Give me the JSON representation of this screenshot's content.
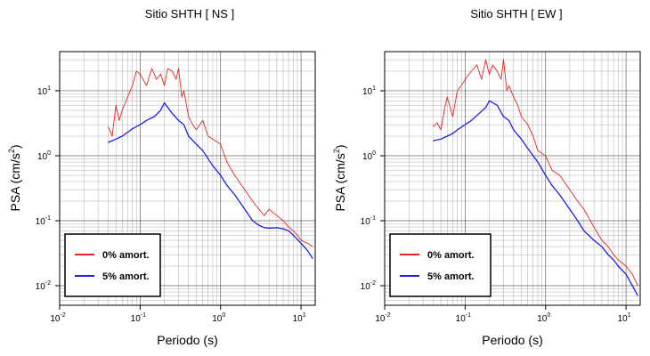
{
  "chart_data": [
    {
      "type": "line",
      "title": "Sitio SHTH [ NS ]",
      "xlabel": "Periodo (s)",
      "ylabel": "PSA (cm/s²)",
      "x_scale": "log",
      "y_scale": "log",
      "xlim": [
        0.01,
        15
      ],
      "ylim": [
        0.005,
        40
      ],
      "grid": true,
      "legend_position": "bottom-left",
      "x_ticks": [
        {
          "value": 0.01,
          "base": "10",
          "exp": "-2"
        },
        {
          "value": 0.1,
          "base": "10",
          "exp": "-1"
        },
        {
          "value": 1,
          "base": "10",
          "exp": "0"
        },
        {
          "value": 10,
          "base": "10",
          "exp": "1"
        }
      ],
      "y_ticks": [
        {
          "value": 0.01,
          "base": "10",
          "exp": "-2"
        },
        {
          "value": 0.1,
          "base": "10",
          "exp": "-1"
        },
        {
          "value": 1,
          "base": "10",
          "exp": "0"
        },
        {
          "value": 10,
          "base": "10",
          "exp": "1"
        }
      ],
      "series": [
        {
          "name": "0% amort.",
          "color": "#e8231f",
          "x": [
            0.04,
            0.045,
            0.05,
            0.055,
            0.06,
            0.07,
            0.08,
            0.09,
            0.1,
            0.12,
            0.14,
            0.16,
            0.18,
            0.2,
            0.22,
            0.25,
            0.28,
            0.3,
            0.33,
            0.35,
            0.4,
            0.45,
            0.5,
            0.6,
            0.7,
            0.8,
            1.0,
            1.2,
            1.5,
            2.0,
            2.5,
            3.0,
            3.5,
            4.0,
            5.0,
            6.0,
            7.0,
            8.0,
            9.0,
            10.0,
            12.0,
            14.0
          ],
          "y": [
            2.8,
            2.0,
            6.0,
            3.5,
            5.0,
            8.0,
            12.0,
            20.0,
            18.0,
            12.0,
            22.0,
            15.0,
            18.0,
            12.0,
            22.0,
            20.0,
            15.0,
            22.0,
            8.0,
            10.0,
            4.0,
            3.0,
            2.5,
            3.5,
            2.0,
            1.8,
            1.5,
            0.8,
            0.5,
            0.3,
            0.2,
            0.15,
            0.12,
            0.15,
            0.12,
            0.1,
            0.08,
            0.07,
            0.06,
            0.05,
            0.045,
            0.04
          ]
        },
        {
          "name": "5% amort.",
          "color": "#1f1fe6",
          "x": [
            0.04,
            0.05,
            0.06,
            0.07,
            0.08,
            0.1,
            0.12,
            0.15,
            0.18,
            0.2,
            0.25,
            0.3,
            0.35,
            0.4,
            0.5,
            0.6,
            0.7,
            0.8,
            1.0,
            1.2,
            1.5,
            2.0,
            2.5,
            3.0,
            3.5,
            4.0,
            5.0,
            6.0,
            7.0,
            8.0,
            10.0,
            12.0,
            14.0
          ],
          "y": [
            1.6,
            1.8,
            2.0,
            2.3,
            2.6,
            3.0,
            3.5,
            4.0,
            5.0,
            6.5,
            4.5,
            3.5,
            3.0,
            2.0,
            1.5,
            1.2,
            0.9,
            0.7,
            0.5,
            0.35,
            0.25,
            0.15,
            0.1,
            0.085,
            0.078,
            0.077,
            0.078,
            0.075,
            0.07,
            0.06,
            0.045,
            0.035,
            0.026
          ]
        }
      ]
    },
    {
      "type": "line",
      "title": "Sitio SHTH [ EW ]",
      "xlabel": "Periodo (s)",
      "ylabel": "PSA (cm/s²)",
      "x_scale": "log",
      "y_scale": "log",
      "xlim": [
        0.01,
        15
      ],
      "ylim": [
        0.005,
        40
      ],
      "grid": true,
      "legend_position": "bottom-left",
      "x_ticks": [
        {
          "value": 0.01,
          "base": "10",
          "exp": "-2"
        },
        {
          "value": 0.1,
          "base": "10",
          "exp": "-1"
        },
        {
          "value": 1,
          "base": "10",
          "exp": "0"
        },
        {
          "value": 10,
          "base": "10",
          "exp": "1"
        }
      ],
      "y_ticks": [
        {
          "value": 0.01,
          "base": "10",
          "exp": "-2"
        },
        {
          "value": 0.1,
          "base": "10",
          "exp": "-1"
        },
        {
          "value": 1,
          "base": "10",
          "exp": "0"
        },
        {
          "value": 10,
          "base": "10",
          "exp": "1"
        }
      ],
      "series": [
        {
          "name": "0% amort.",
          "color": "#e8231f",
          "x": [
            0.04,
            0.045,
            0.05,
            0.055,
            0.06,
            0.07,
            0.08,
            0.09,
            0.1,
            0.12,
            0.14,
            0.16,
            0.18,
            0.2,
            0.22,
            0.25,
            0.28,
            0.3,
            0.33,
            0.35,
            0.4,
            0.45,
            0.5,
            0.6,
            0.7,
            0.8,
            1.0,
            1.2,
            1.5,
            2.0,
            2.5,
            3.0,
            4.0,
            5.0,
            6.0,
            7.0,
            8.0,
            10.0,
            12.0,
            14.0
          ],
          "y": [
            2.8,
            3.2,
            2.5,
            5.0,
            8.0,
            4.0,
            10.0,
            12.0,
            15.0,
            20.0,
            25.0,
            15.0,
            30.0,
            18.0,
            25.0,
            20.0,
            15.0,
            30.0,
            10.0,
            12.0,
            8.0,
            6.0,
            4.0,
            3.0,
            2.0,
            1.2,
            1.0,
            0.6,
            0.5,
            0.3,
            0.2,
            0.15,
            0.08,
            0.05,
            0.04,
            0.03,
            0.025,
            0.02,
            0.015,
            0.01
          ]
        },
        {
          "name": "5% amort.",
          "color": "#1f1fe6",
          "x": [
            0.04,
            0.05,
            0.06,
            0.07,
            0.08,
            0.1,
            0.12,
            0.15,
            0.18,
            0.2,
            0.25,
            0.3,
            0.35,
            0.4,
            0.5,
            0.6,
            0.7,
            0.8,
            1.0,
            1.2,
            1.5,
            2.0,
            2.5,
            3.0,
            4.0,
            5.0,
            6.0,
            7.0,
            8.0,
            10.0,
            12.0,
            14.0
          ],
          "y": [
            1.7,
            1.8,
            2.0,
            2.2,
            2.5,
            3.0,
            3.5,
            4.5,
            5.5,
            7.0,
            6.0,
            4.0,
            3.5,
            2.5,
            1.8,
            1.3,
            1.0,
            0.8,
            0.5,
            0.35,
            0.25,
            0.15,
            0.1,
            0.07,
            0.05,
            0.04,
            0.03,
            0.025,
            0.02,
            0.015,
            0.01,
            0.007
          ]
        }
      ]
    }
  ]
}
